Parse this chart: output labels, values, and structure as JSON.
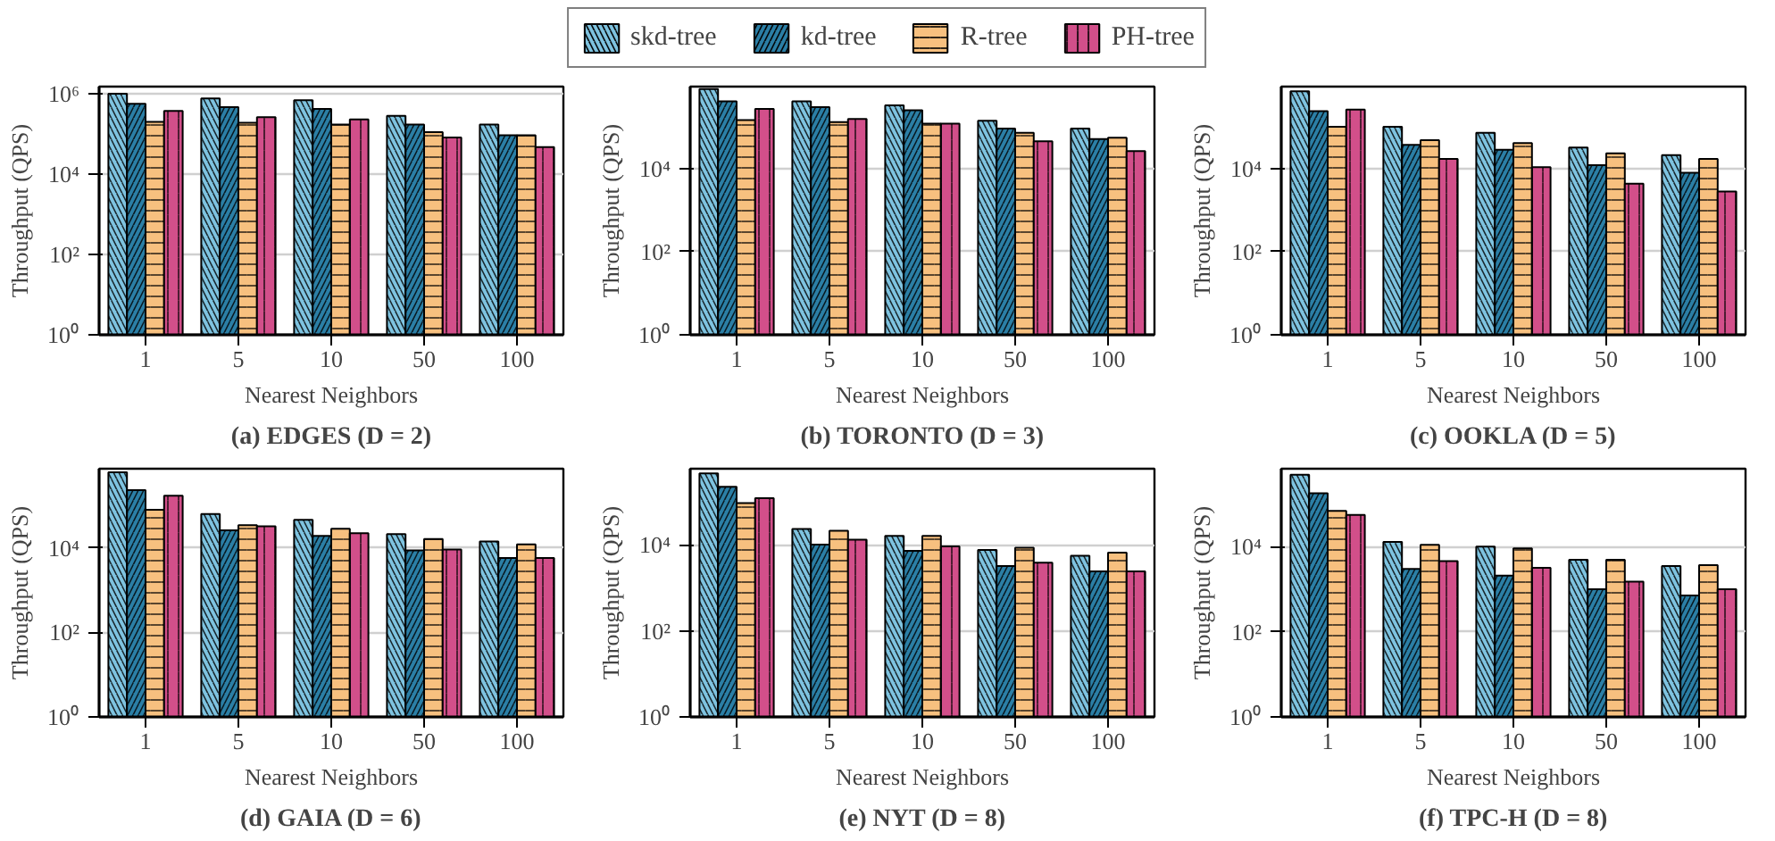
{
  "chart_data": [
    {
      "type": "bar",
      "title": "(a) EDGES (D = 2)",
      "xlabel": "Nearest Neighbors",
      "ylabel": "Throughput (QPS)",
      "categories": [
        "1",
        "5",
        "10",
        "50",
        "100"
      ],
      "log": true,
      "grid": "y",
      "legend": "top",
      "ylim": [
        1,
        1500000
      ],
      "yticks": [
        {
          "value": 1,
          "label": "10⁰"
        },
        {
          "value": 100,
          "label": "10²"
        },
        {
          "value": 10000,
          "label": "10⁴"
        },
        {
          "value": 1000000,
          "label": "10⁶"
        }
      ],
      "series": [
        {
          "name": "skd-tree",
          "color": "#7ec3e0",
          "values": [
            1000000,
            760000,
            690000,
            280000,
            170000
          ]
        },
        {
          "name": "kd-tree",
          "color": "#2b7fa6",
          "values": [
            560000,
            460000,
            420000,
            170000,
            92000
          ]
        },
        {
          "name": "R-tree",
          "color": "#f7c07f",
          "values": [
            200000,
            190000,
            170000,
            110000,
            92000
          ]
        },
        {
          "name": "PH-tree",
          "color": "#d24f8a",
          "values": [
            370000,
            260000,
            230000,
            81000,
            47000
          ]
        }
      ]
    },
    {
      "type": "bar",
      "title": "(b) TORONTO (D = 3)",
      "xlabel": "Nearest Neighbors",
      "ylabel": "Throughput (QPS)",
      "categories": [
        "1",
        "5",
        "10",
        "50",
        "100"
      ],
      "log": true,
      "grid": "y",
      "ylim": [
        1,
        930000
      ],
      "yticks": [
        {
          "value": 1,
          "label": "10⁰"
        },
        {
          "value": 100,
          "label": "10²"
        },
        {
          "value": 10000,
          "label": "10⁴"
        }
      ],
      "series": [
        {
          "color": "#7ec3e0",
          "values": [
            810000,
            410000,
            330000,
            140000,
            91000
          ]
        },
        {
          "color": "#2b7fa6",
          "values": [
            410000,
            300000,
            250000,
            91000,
            51000
          ]
        },
        {
          "color": "#f7c07f",
          "values": [
            145000,
            130000,
            120000,
            72000,
            55000
          ]
        },
        {
          "color": "#d24f8a",
          "values": [
            270000,
            155000,
            120000,
            45000,
            26000
          ]
        }
      ]
    },
    {
      "type": "bar",
      "title": "(c) OOKLA (D = 5)",
      "xlabel": "Nearest Neighbors",
      "ylabel": "Throughput (QPS)",
      "categories": [
        "1",
        "5",
        "10",
        "50",
        "100"
      ],
      "log": true,
      "grid": "y",
      "ylim": [
        1,
        930000
      ],
      "yticks": [
        {
          "value": 1,
          "label": "10⁰"
        },
        {
          "value": 100,
          "label": "10²"
        },
        {
          "value": 10000,
          "label": "10⁴"
        }
      ],
      "series": [
        {
          "color": "#7ec3e0",
          "values": [
            720000,
            100000,
            72000,
            32000,
            21000
          ]
        },
        {
          "color": "#2b7fa6",
          "values": [
            240000,
            37000,
            28000,
            12000,
            7900
          ]
        },
        {
          "color": "#f7c07f",
          "values": [
            100000,
            48000,
            41000,
            23000,
            17000
          ]
        },
        {
          "color": "#d24f8a",
          "values": [
            260000,
            17000,
            10700,
            4300,
            2800
          ]
        }
      ]
    },
    {
      "type": "bar",
      "title": "(d) GAIA (D = 6)",
      "xlabel": "Nearest Neighbors",
      "ylabel": "Throughput (QPS)",
      "categories": [
        "1",
        "5",
        "10",
        "50",
        "100"
      ],
      "log": true,
      "grid": "y",
      "ylim": [
        1,
        740000
      ],
      "yticks": [
        {
          "value": 1,
          "label": "10⁰"
        },
        {
          "value": 100,
          "label": "10²"
        },
        {
          "value": 10000,
          "label": "10⁴"
        }
      ],
      "series": [
        {
          "color": "#7ec3e0",
          "values": [
            610000,
            63000,
            46000,
            21000,
            14000
          ]
        },
        {
          "color": "#2b7fa6",
          "values": [
            230000,
            26000,
            19000,
            8700,
            5700
          ]
        },
        {
          "color": "#f7c07f",
          "values": [
            79000,
            34000,
            28000,
            16000,
            12000
          ]
        },
        {
          "color": "#d24f8a",
          "values": [
            170000,
            32000,
            22000,
            9100,
            5700
          ]
        }
      ]
    },
    {
      "type": "bar",
      "title": "(e) NYT (D = 8)",
      "xlabel": "Nearest Neighbors",
      "ylabel": "Throughput (QPS)",
      "categories": [
        "1",
        "5",
        "10",
        "50",
        "100"
      ],
      "log": true,
      "grid": "y",
      "ylim": [
        1,
        580000
      ],
      "yticks": [
        {
          "value": 1,
          "label": "10⁰"
        },
        {
          "value": 100,
          "label": "10²"
        },
        {
          "value": 10000,
          "label": "10⁴"
        }
      ],
      "series": [
        {
          "color": "#7ec3e0",
          "values": [
            450000,
            23000,
            16000,
            7500,
            5500
          ]
        },
        {
          "color": "#2b7fa6",
          "values": [
            220000,
            10000,
            7200,
            3200,
            2400
          ]
        },
        {
          "color": "#f7c07f",
          "values": [
            92000,
            21000,
            16000,
            8500,
            6500
          ]
        },
        {
          "color": "#d24f8a",
          "values": [
            120000,
            13000,
            9100,
            3800,
            2400
          ]
        }
      ]
    },
    {
      "type": "bar",
      "title": "(f) TPC-H (D = 8)",
      "xlabel": "Nearest Neighbors",
      "ylabel": "Throughput (QPS)",
      "categories": [
        "1",
        "5",
        "10",
        "50",
        "100"
      ],
      "log": true,
      "grid": "y",
      "ylim": [
        1,
        680000
      ],
      "yticks": [
        {
          "value": 1,
          "label": "10⁰"
        },
        {
          "value": 100,
          "label": "10²"
        },
        {
          "value": 10000,
          "label": "10⁴"
        }
      ],
      "series": [
        {
          "color": "#7ec3e0",
          "values": [
            490000,
            13000,
            10000,
            4900,
            3500
          ]
        },
        {
          "color": "#2b7fa6",
          "values": [
            180000,
            3000,
            2100,
            1000,
            710
          ]
        },
        {
          "color": "#f7c07f",
          "values": [
            69000,
            11000,
            9100,
            4900,
            3700
          ]
        },
        {
          "color": "#d24f8a",
          "values": [
            56000,
            4600,
            3200,
            1500,
            1000
          ]
        }
      ]
    }
  ]
}
